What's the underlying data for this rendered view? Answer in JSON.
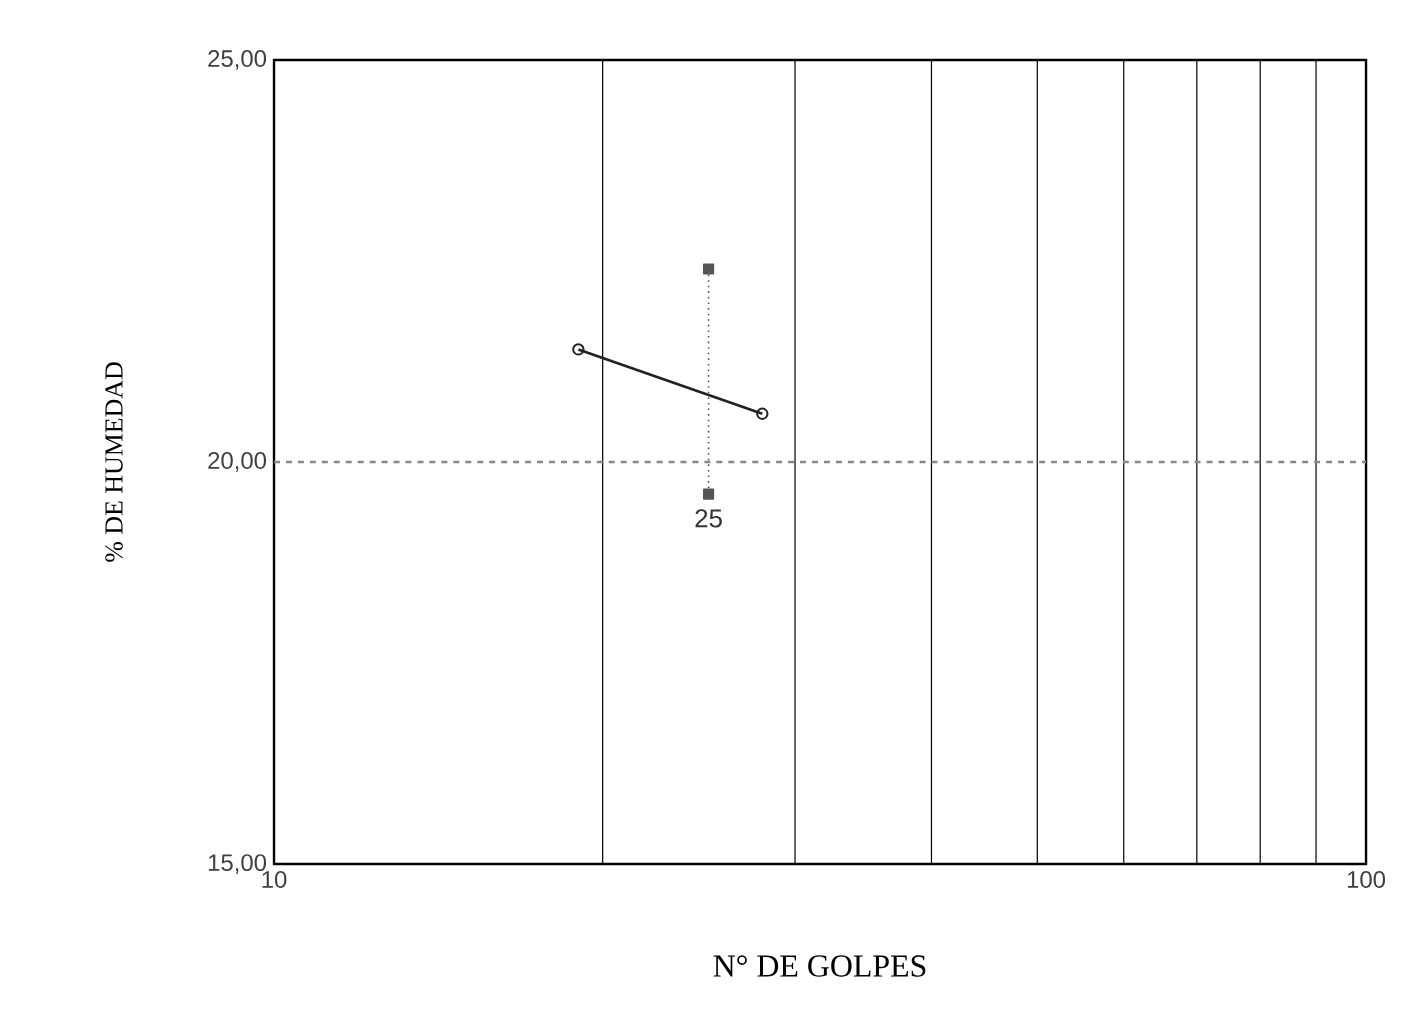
{
  "chart_data": {
    "type": "line",
    "xlabel": "N° DE GOLPES",
    "ylabel": "% DE HUMEDAD",
    "log": "x",
    "grid": "x",
    "xlim": [
      10,
      100
    ],
    "ylim": [
      15,
      25
    ],
    "xticks": [
      10,
      {
        "value": 20,
        "label": null
      },
      {
        "value": 30,
        "label": null
      },
      {
        "value": 40,
        "label": null
      },
      {
        "value": 50,
        "label": null
      },
      {
        "value": 60,
        "label": null
      },
      {
        "value": 70,
        "label": null
      },
      {
        "value": 80,
        "label": null
      },
      {
        "value": 90,
        "label": null
      },
      100
    ],
    "yticks": [
      {
        "value": 15,
        "label": "15,00"
      },
      {
        "value": 20,
        "label": "20,00"
      },
      {
        "value": 25,
        "label": "25,00"
      }
    ],
    "series": [
      {
        "color": "#222222",
        "x": [
          19,
          28
        ],
        "values": [
          21.4,
          20.6
        ],
        "marker": "circle",
        "line_style": "solid"
      },
      {
        "color": "#555555",
        "x": [
          25,
          25
        ],
        "values": [
          22.4,
          19.6
        ],
        "marker": "square",
        "line_style": "dotted"
      }
    ],
    "ref_lines": [
      {
        "axis": "y",
        "value": 20,
        "color": "#888888",
        "line_style": "dashed"
      }
    ],
    "annotations": [
      {
        "text": "25",
        "x": 25,
        "y": 19.6
      }
    ]
  }
}
